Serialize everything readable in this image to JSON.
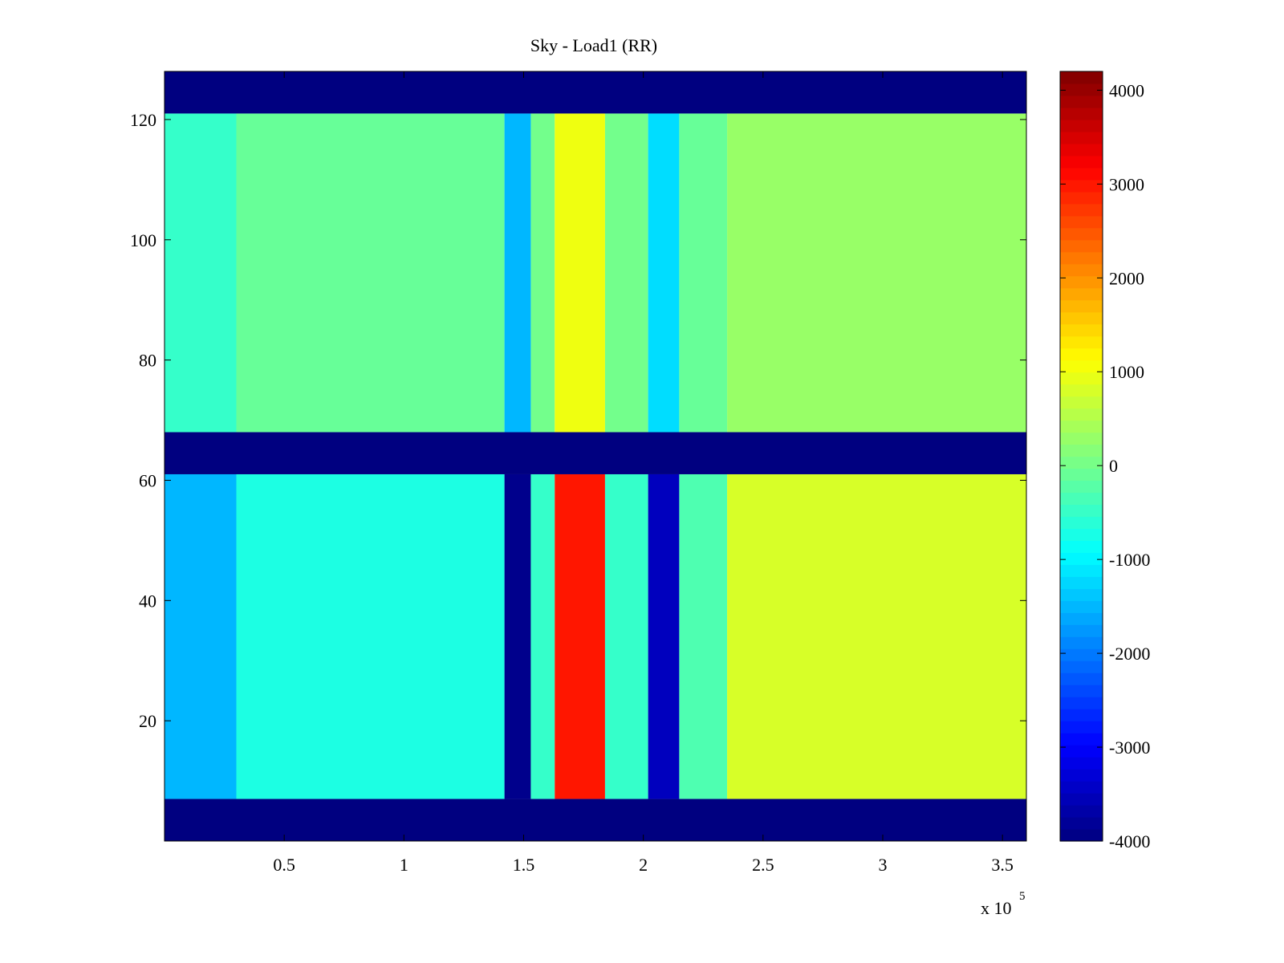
{
  "chart_data": {
    "type": "heatmap",
    "title": "Sky - Load1 (RR)",
    "xlabel": "",
    "ylabel": "",
    "x_multiplier_label": "x 10",
    "x_multiplier_exponent": "5",
    "xlim": [
      0,
      360000
    ],
    "ylim": [
      0,
      128
    ],
    "x_ticks": [
      50000,
      100000,
      150000,
      200000,
      250000,
      300000,
      350000
    ],
    "x_tick_labels": [
      "0.5",
      "1",
      "1.5",
      "2",
      "2.5",
      "3",
      "3.5"
    ],
    "y_ticks": [
      20,
      40,
      60,
      80,
      100,
      120
    ],
    "y_tick_labels": [
      "20",
      "40",
      "60",
      "80",
      "100",
      "120"
    ],
    "colormap": "jet",
    "clim": [
      -4000,
      4200
    ],
    "colorbar_ticks": [
      4000,
      3000,
      2000,
      1000,
      0,
      -1000,
      -2000,
      -3000,
      -4000
    ],
    "colorbar_tick_labels": [
      "4000",
      "3000",
      "2000",
      "1000",
      "0",
      "-1000",
      "-2000",
      "-3000",
      "-4000"
    ],
    "masked_row_bands": [
      [
        0,
        7
      ],
      [
        61,
        68
      ],
      [
        121,
        128
      ]
    ],
    "masked_value": -4000,
    "column_bands_lower_rows": [
      {
        "x_range": [
          0,
          30000
        ],
        "value": -1500
      },
      {
        "x_range": [
          30000,
          142000
        ],
        "value": -700
      },
      {
        "x_range": [
          142000,
          153000
        ],
        "value": -3900
      },
      {
        "x_range": [
          153000,
          163000
        ],
        "value": -500
      },
      {
        "x_range": [
          163000,
          184000
        ],
        "value": 3000
      },
      {
        "x_range": [
          184000,
          202000
        ],
        "value": -500
      },
      {
        "x_range": [
          202000,
          215000
        ],
        "value": -3500
      },
      {
        "x_range": [
          215000,
          235000
        ],
        "value": -300
      },
      {
        "x_range": [
          235000,
          360000
        ],
        "value": 800
      }
    ],
    "column_bands_upper_rows": [
      {
        "x_range": [
          0,
          30000
        ],
        "value": -500
      },
      {
        "x_range": [
          30000,
          142000
        ],
        "value": -100
      },
      {
        "x_range": [
          142000,
          153000
        ],
        "value": -1500
      },
      {
        "x_range": [
          153000,
          163000
        ],
        "value": 0
      },
      {
        "x_range": [
          163000,
          184000
        ],
        "value": 1000
      },
      {
        "x_range": [
          184000,
          202000
        ],
        "value": 0
      },
      {
        "x_range": [
          202000,
          215000
        ],
        "value": -1200
      },
      {
        "x_range": [
          215000,
          235000
        ],
        "value": -100
      },
      {
        "x_range": [
          235000,
          360000
        ],
        "value": 300
      }
    ],
    "grid": false
  }
}
